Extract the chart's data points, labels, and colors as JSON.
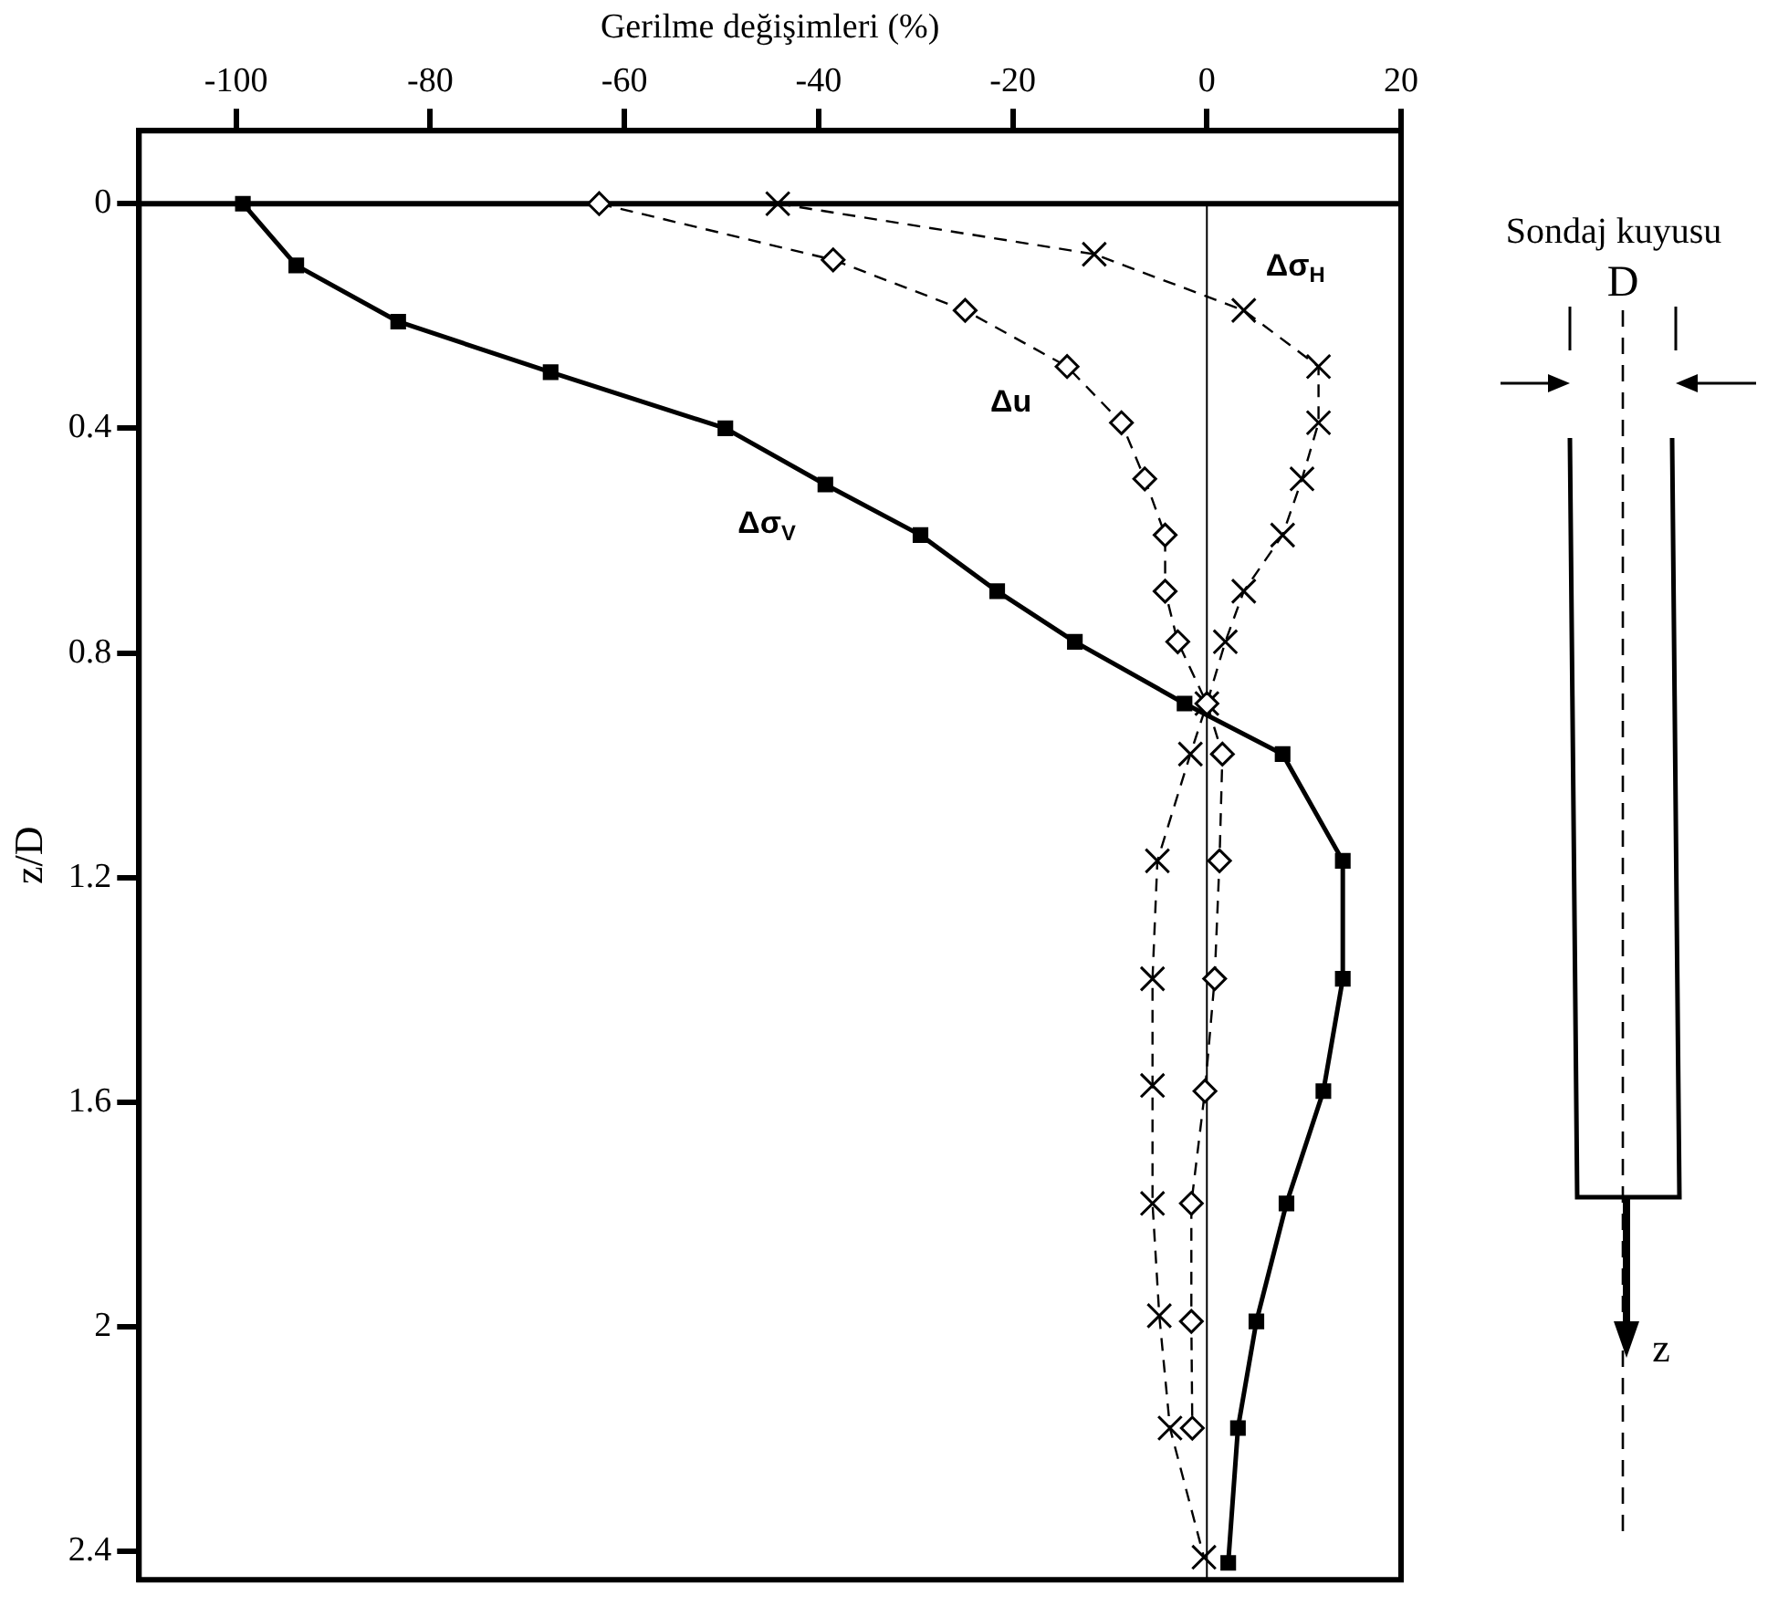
{
  "chart_data": {
    "type": "line",
    "xlabel": "Gerilme değişimleri (%)",
    "ylabel": "z/D",
    "xlim": [
      -110,
      20
    ],
    "xticks": [
      -100,
      -80,
      -60,
      -40,
      -20,
      0,
      20
    ],
    "ylim": [
      2.45,
      -0.13
    ],
    "yticks": [
      0,
      0.4,
      0.8,
      1.2,
      1.6,
      2.0,
      2.4
    ],
    "grid": false,
    "legend": false,
    "series": [
      {
        "name": "Δσ$_{V}$",
        "color": "#000000",
        "marker": "square",
        "line_style": "solid",
        "x": [
          -99.3,
          -93.8,
          -83.3,
          -67.6,
          -49.6,
          -39.3,
          -29.5,
          -21.6,
          -13.6,
          -2.3,
          7.8,
          14,
          14,
          12,
          8.2,
          5.1,
          3.2,
          2.2
        ],
        "values": [
          0,
          0.11,
          0.21,
          0.3,
          0.4,
          0.5,
          0.59,
          0.69,
          0.78,
          0.89,
          0.98,
          1.17,
          1.38,
          1.58,
          1.78,
          1.99,
          2.18,
          2.42
        ]
      },
      {
        "name": "Δu",
        "color": "#000000",
        "marker": "diamond",
        "line_style": "dashed",
        "x": [
          -62.6,
          -38.5,
          -24.9,
          -14.4,
          -8.8,
          -6.4,
          -4.3,
          -4.3,
          -3,
          0,
          1.6,
          1.3,
          0.8,
          -0.2,
          -1.6,
          -1.6,
          -1.5
        ],
        "values": [
          0,
          0.1,
          0.19,
          0.29,
          0.39,
          0.49,
          0.59,
          0.69,
          0.78,
          0.89,
          0.98,
          1.17,
          1.38,
          1.58,
          1.78,
          1.99,
          2.18
        ]
      },
      {
        "name": "Δσ$_{H}$",
        "color": "#000000",
        "marker": "cross",
        "line_style": "dashed",
        "x": [
          -44.2,
          -11.6,
          3.8,
          11.5,
          11.5,
          9.8,
          7.8,
          3.8,
          1.9,
          0,
          -1.7,
          -5.1,
          -5.6,
          -5.6,
          -5.6,
          -4.9,
          -3.8,
          -0.3
        ],
        "values": [
          0,
          0.09,
          0.19,
          0.29,
          0.39,
          0.49,
          0.59,
          0.69,
          0.78,
          0.89,
          0.98,
          1.17,
          1.38,
          1.57,
          1.78,
          1.98,
          2.18,
          2.41
        ]
      }
    ],
    "ref_lines": [
      {
        "axis": "y",
        "value": 0,
        "color": "#000000",
        "line_style": "solid"
      },
      {
        "axis": "x",
        "value": 0,
        "color": "#000000",
        "line_style": "solid"
      }
    ],
    "annotations": [
      "Sondaj kuyusu",
      "D",
      "z"
    ]
  }
}
